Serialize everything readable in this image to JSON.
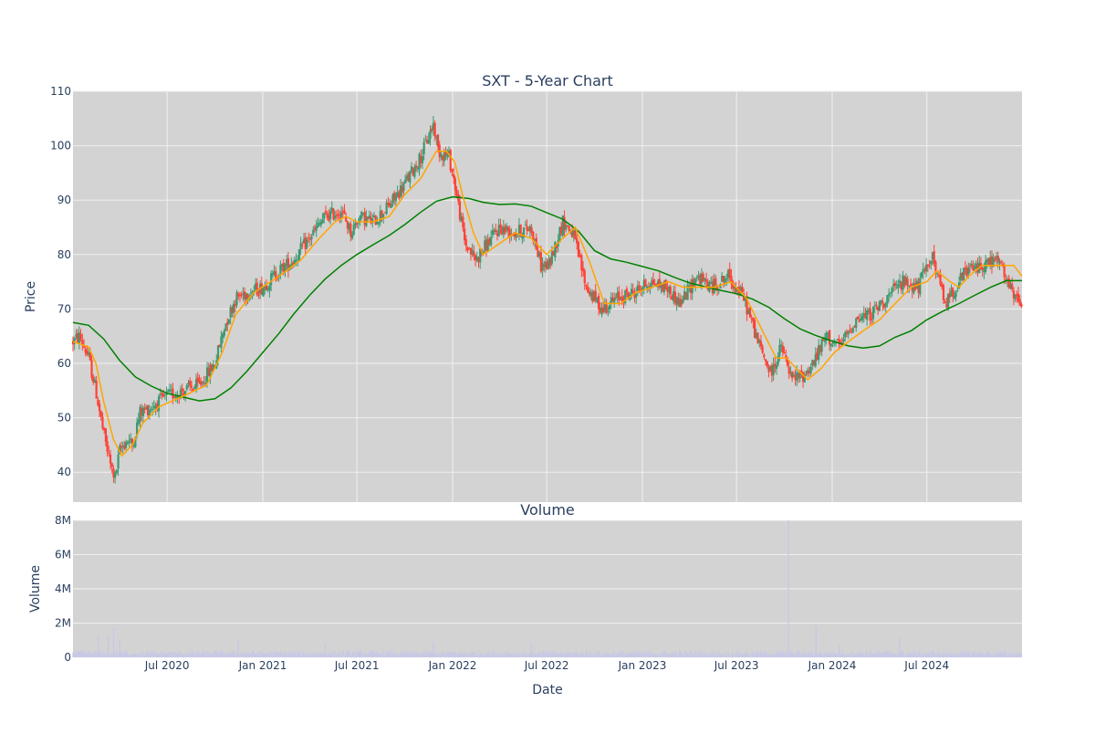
{
  "chart_data": [
    {
      "type": "candlestick",
      "title": "SXT - 5-Year Chart",
      "ylabel": "Price",
      "ylim": [
        34.5,
        110
      ],
      "yticks": [
        40,
        50,
        60,
        70,
        80,
        90,
        100,
        110
      ],
      "grid": true,
      "legend": "none",
      "colors": {
        "increasing": "#3d9970",
        "decreasing": "#ff4136",
        "ma_short": "#ffa500",
        "ma_long": "#008000",
        "plot_bg": "#d3d3d3",
        "grid": "#f0f0f0"
      },
      "price_path": [
        [
          "2020-01-02",
          64
        ],
        [
          "2020-01-15",
          65
        ],
        [
          "2020-02-01",
          61
        ],
        [
          "2020-02-15",
          55
        ],
        [
          "2020-03-01",
          47
        ],
        [
          "2020-03-15",
          41
        ],
        [
          "2020-03-23",
          39
        ],
        [
          "2020-04-01",
          44
        ],
        [
          "2020-04-15",
          46
        ],
        [
          "2020-04-25",
          45
        ],
        [
          "2020-05-10",
          51
        ],
        [
          "2020-06-01",
          52
        ],
        [
          "2020-07-01",
          54
        ],
        [
          "2020-08-01",
          55
        ],
        [
          "2020-09-01",
          56
        ],
        [
          "2020-10-01",
          60
        ],
        [
          "2020-10-20",
          67
        ],
        [
          "2020-11-10",
          72
        ],
        [
          "2020-12-01",
          73
        ],
        [
          "2021-01-01",
          74
        ],
        [
          "2021-02-01",
          77
        ],
        [
          "2021-03-01",
          79
        ],
        [
          "2021-04-01",
          83
        ],
        [
          "2021-05-01",
          87
        ],
        [
          "2021-06-01",
          88
        ],
        [
          "2021-06-20",
          84
        ],
        [
          "2021-07-05",
          87
        ],
        [
          "2021-08-01",
          86
        ],
        [
          "2021-09-01",
          89
        ],
        [
          "2021-10-01",
          93
        ],
        [
          "2021-11-01",
          98
        ],
        [
          "2021-11-25",
          104
        ],
        [
          "2021-12-05",
          99
        ],
        [
          "2021-12-25",
          98
        ],
        [
          "2022-01-05",
          93
        ],
        [
          "2022-01-25",
          82
        ],
        [
          "2022-02-15",
          79
        ],
        [
          "2022-03-01",
          81
        ],
        [
          "2022-04-01",
          85
        ],
        [
          "2022-05-01",
          84
        ],
        [
          "2022-06-01",
          85
        ],
        [
          "2022-06-20",
          78
        ],
        [
          "2022-07-05",
          78
        ],
        [
          "2022-08-01",
          86
        ],
        [
          "2022-08-20",
          84
        ],
        [
          "2022-09-15",
          74
        ],
        [
          "2022-10-15",
          70
        ],
        [
          "2022-11-15",
          72
        ],
        [
          "2022-12-15",
          73
        ],
        [
          "2023-01-15",
          75
        ],
        [
          "2023-02-15",
          74
        ],
        [
          "2023-03-15",
          71
        ],
        [
          "2023-04-15",
          76
        ],
        [
          "2023-05-15",
          74
        ],
        [
          "2023-06-15",
          76
        ],
        [
          "2023-07-15",
          72
        ],
        [
          "2023-08-15",
          63
        ],
        [
          "2023-09-05",
          58
        ],
        [
          "2023-09-25",
          63
        ],
        [
          "2023-10-15",
          57
        ],
        [
          "2023-11-10",
          58
        ],
        [
          "2023-12-01",
          61
        ],
        [
          "2023-12-20",
          65
        ],
        [
          "2024-01-15",
          63
        ],
        [
          "2024-02-15",
          68
        ],
        [
          "2024-03-15",
          69
        ],
        [
          "2024-04-15",
          72
        ],
        [
          "2024-05-15",
          75
        ],
        [
          "2024-06-15",
          74
        ],
        [
          "2024-07-10",
          80
        ],
        [
          "2024-08-05",
          71
        ],
        [
          "2024-08-25",
          74
        ],
        [
          "2024-09-15",
          77
        ],
        [
          "2024-10-15",
          78
        ],
        [
          "2024-11-15",
          79
        ],
        [
          "2024-12-15",
          72
        ],
        [
          "2024-12-31",
          71
        ]
      ],
      "ma_short": [
        [
          "2020-01-02",
          64
        ],
        [
          "2020-02-01",
          63
        ],
        [
          "2020-02-15",
          60
        ],
        [
          "2020-03-01",
          53
        ],
        [
          "2020-03-20",
          46
        ],
        [
          "2020-04-05",
          43
        ],
        [
          "2020-04-25",
          45
        ],
        [
          "2020-05-15",
          49
        ],
        [
          "2020-06-15",
          52
        ],
        [
          "2020-08-01",
          54
        ],
        [
          "2020-09-15",
          56
        ],
        [
          "2020-10-15",
          62
        ],
        [
          "2020-11-10",
          69
        ],
        [
          "2020-12-15",
          73
        ],
        [
          "2021-02-01",
          76
        ],
        [
          "2021-03-15",
          79
        ],
        [
          "2021-04-20",
          83
        ],
        [
          "2021-05-20",
          86
        ],
        [
          "2021-06-10",
          87
        ],
        [
          "2021-07-01",
          86
        ],
        [
          "2021-08-01",
          86
        ],
        [
          "2021-09-01",
          87
        ],
        [
          "2021-10-01",
          91
        ],
        [
          "2021-11-01",
          94
        ],
        [
          "2021-12-01",
          99
        ],
        [
          "2021-12-20",
          99
        ],
        [
          "2022-01-05",
          97
        ],
        [
          "2022-01-20",
          91
        ],
        [
          "2022-02-10",
          84
        ],
        [
          "2022-03-01",
          80
        ],
        [
          "2022-04-01",
          82
        ],
        [
          "2022-05-01",
          84
        ],
        [
          "2022-06-01",
          83
        ],
        [
          "2022-07-01",
          80
        ],
        [
          "2022-08-01",
          83
        ],
        [
          "2022-08-25",
          85
        ],
        [
          "2022-09-20",
          79
        ],
        [
          "2022-10-20",
          71
        ],
        [
          "2022-11-20",
          71
        ],
        [
          "2022-12-20",
          73
        ],
        [
          "2023-01-20",
          74
        ],
        [
          "2023-02-20",
          75
        ],
        [
          "2023-03-20",
          74
        ],
        [
          "2023-04-20",
          74
        ],
        [
          "2023-05-20",
          74
        ],
        [
          "2023-06-20",
          75
        ],
        [
          "2023-07-20",
          72
        ],
        [
          "2023-08-20",
          66
        ],
        [
          "2023-09-15",
          61
        ],
        [
          "2023-10-05",
          61
        ],
        [
          "2023-10-25",
          59
        ],
        [
          "2023-11-15",
          57
        ],
        [
          "2023-12-10",
          59
        ],
        [
          "2024-01-05",
          62
        ],
        [
          "2024-02-01",
          64
        ],
        [
          "2024-03-01",
          66
        ],
        [
          "2024-04-01",
          68
        ],
        [
          "2024-05-01",
          71
        ],
        [
          "2024-06-01",
          74
        ],
        [
          "2024-07-01",
          75
        ],
        [
          "2024-07-20",
          77
        ],
        [
          "2024-08-15",
          75
        ],
        [
          "2024-09-01",
          74
        ],
        [
          "2024-09-20",
          76
        ],
        [
          "2024-10-15",
          78
        ],
        [
          "2024-11-15",
          78
        ],
        [
          "2024-12-15",
          78
        ],
        [
          "2024-12-31",
          76
        ]
      ],
      "ma_long": [
        [
          "2020-01-02",
          67.5
        ],
        [
          "2020-02-01",
          67
        ],
        [
          "2020-03-01",
          64.5
        ],
        [
          "2020-04-01",
          60.5
        ],
        [
          "2020-05-01",
          57.5
        ],
        [
          "2020-06-01",
          55.8
        ],
        [
          "2020-07-01",
          54.5
        ],
        [
          "2020-08-01",
          53.8
        ],
        [
          "2020-09-01",
          53.1
        ],
        [
          "2020-10-01",
          53.5
        ],
        [
          "2020-11-01",
          55.5
        ],
        [
          "2020-12-01",
          58.5
        ],
        [
          "2021-01-01",
          62
        ],
        [
          "2021-02-01",
          65.5
        ],
        [
          "2021-03-01",
          69
        ],
        [
          "2021-04-01",
          72.5
        ],
        [
          "2021-05-01",
          75.5
        ],
        [
          "2021-06-01",
          78
        ],
        [
          "2021-07-01",
          80
        ],
        [
          "2021-08-01",
          81.8
        ],
        [
          "2021-09-01",
          83.5
        ],
        [
          "2021-10-01",
          85.5
        ],
        [
          "2021-11-01",
          87.8
        ],
        [
          "2021-12-01",
          89.8
        ],
        [
          "2022-01-01",
          90.6
        ],
        [
          "2022-02-01",
          90.3
        ],
        [
          "2022-03-01",
          89.6
        ],
        [
          "2022-04-01",
          89.2
        ],
        [
          "2022-05-01",
          89.3
        ],
        [
          "2022-06-01",
          88.9
        ],
        [
          "2022-07-01",
          87.7
        ],
        [
          "2022-08-01",
          86.5
        ],
        [
          "2022-09-01",
          84.2
        ],
        [
          "2022-10-01",
          80.7
        ],
        [
          "2022-11-01",
          79.2
        ],
        [
          "2022-12-01",
          78.6
        ],
        [
          "2023-01-01",
          77.8
        ],
        [
          "2023-02-01",
          77
        ],
        [
          "2023-03-01",
          75.9
        ],
        [
          "2023-04-01",
          74.8
        ],
        [
          "2023-05-01",
          74.1
        ],
        [
          "2023-06-01",
          73.4
        ],
        [
          "2023-07-01",
          72.8
        ],
        [
          "2023-08-01",
          71.8
        ],
        [
          "2023-09-01",
          70.3
        ],
        [
          "2023-10-01",
          68.2
        ],
        [
          "2023-11-01",
          66.3
        ],
        [
          "2023-12-01",
          65.1
        ],
        [
          "2024-01-01",
          64.1
        ],
        [
          "2024-02-01",
          63.2
        ],
        [
          "2024-03-01",
          62.8
        ],
        [
          "2024-04-01",
          63.2
        ],
        [
          "2024-05-01",
          64.8
        ],
        [
          "2024-06-01",
          66
        ],
        [
          "2024-07-01",
          68
        ],
        [
          "2024-08-01",
          69.6
        ],
        [
          "2024-09-01",
          71
        ],
        [
          "2024-10-01",
          72.5
        ],
        [
          "2024-11-01",
          74
        ],
        [
          "2024-12-01",
          75.2
        ],
        [
          "2024-12-31",
          75.2
        ]
      ]
    },
    {
      "type": "bar",
      "title": "Volume",
      "xlabel": "Date",
      "ylabel": "Volume",
      "ylim": [
        0,
        8000000
      ],
      "yticks": [
        0,
        2000000,
        4000000,
        6000000,
        8000000
      ],
      "ytick_labels": [
        "0",
        "2M",
        "4M",
        "6M",
        "8M"
      ],
      "xlim": [
        "2020-01-02",
        "2024-12-31"
      ],
      "xticks": [
        "2020-07-01",
        "2021-01-01",
        "2021-07-01",
        "2022-01-01",
        "2022-07-01",
        "2023-01-01",
        "2023-07-01",
        "2024-01-01",
        "2024-07-01"
      ],
      "xtick_labels": [
        "Jul 2020",
        "Jan 2021",
        "Jul 2021",
        "Jan 2022",
        "Jul 2022",
        "Jan 2023",
        "Jul 2023",
        "Jan 2024",
        "Jul 2024"
      ],
      "bar_color": "#c8c8e6",
      "spikes": [
        [
          "2020-02-20",
          1200000
        ],
        [
          "2020-03-10",
          1300000
        ],
        [
          "2020-03-20",
          1700000
        ],
        [
          "2020-04-01",
          1100000
        ],
        [
          "2020-11-15",
          1000000
        ],
        [
          "2021-05-01",
          800000
        ],
        [
          "2021-11-25",
          900000
        ],
        [
          "2022-06-01",
          800000
        ],
        [
          "2023-10-09",
          8000000
        ],
        [
          "2023-12-01",
          1800000
        ],
        [
          "2024-01-15",
          700000
        ],
        [
          "2024-05-10",
          1200000
        ]
      ],
      "base_volume": 250000
    }
  ]
}
